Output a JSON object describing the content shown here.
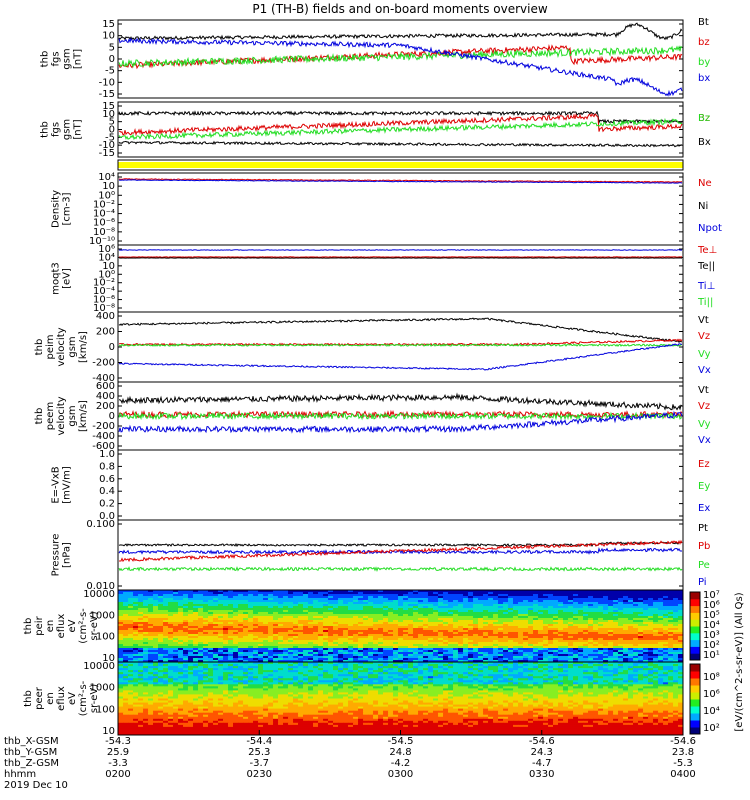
{
  "title": "P1 (TH-B) fields and on-board moments overview",
  "colors": {
    "black": "#000000",
    "red": "#dd0000",
    "green": "#22dd22",
    "blue": "#0000dd",
    "yellow": "#ffff00"
  },
  "chart_data": [
    {
      "type": "line",
      "ylabel": [
        "thb",
        "fgs",
        "gsm",
        "[nT]"
      ],
      "ylim": [
        -17,
        17
      ],
      "yticks": [
        "15",
        "10",
        "5",
        "0",
        "-5",
        "-10",
        "-15"
      ],
      "series": [
        {
          "name": "Bt",
          "color": "black"
        },
        {
          "name": "bz",
          "color": "red"
        },
        {
          "name": "by",
          "color": "green"
        },
        {
          "name": "bx",
          "color": "blue"
        }
      ]
    },
    {
      "type": "line",
      "ylabel": [
        "thb",
        "fgs",
        "gsm",
        "[nT]"
      ],
      "ylim": [
        -17,
        17
      ],
      "yticks": [
        "15",
        "10",
        "5",
        "0",
        "-5",
        "-10",
        "-15"
      ],
      "series": [
        {
          "name": "Bz",
          "color": "red"
        },
        {
          "name": "Bz",
          "color": "green"
        },
        {
          "name": "Bx",
          "color": "black"
        }
      ]
    },
    {
      "type": "bar",
      "ylabel": [],
      "yticks": [],
      "series": []
    },
    {
      "type": "line",
      "ylabel": [
        "Density",
        "[cm-3]"
      ],
      "log": true,
      "yticks": [
        "10⁴",
        "10⁲",
        "10⁰",
        "10⁻²",
        "10⁻⁴",
        "10⁻⁶",
        "10⁻⁸",
        "10⁻¹⁰"
      ],
      "series": [
        {
          "name": "Ne",
          "color": "red"
        },
        {
          "name": "Ni",
          "color": "black"
        },
        {
          "name": "Npot",
          "color": "blue"
        }
      ]
    },
    {
      "type": "line",
      "ylabel": [
        "moqt3",
        "[eV]"
      ],
      "log": true,
      "yticks": [
        "10⁶",
        "10⁴",
        "10⁲",
        "10⁰",
        "10⁻²",
        "10⁻⁴",
        "10⁻⁶",
        "10⁻⁸"
      ],
      "series": [
        {
          "name": "Te⊥",
          "color": "red"
        },
        {
          "name": "Te||",
          "color": "black"
        },
        {
          "name": "Ti⊥",
          "color": "blue"
        },
        {
          "name": "Ti||",
          "color": "green"
        }
      ]
    },
    {
      "type": "line",
      "ylabel": [
        "thb",
        "peim",
        "velocity",
        "gsm",
        "[km/s]"
      ],
      "ylim": [
        -500,
        450
      ],
      "yticks": [
        "400",
        "200",
        "0",
        "-200",
        "-400"
      ],
      "series": [
        {
          "name": "Vt",
          "color": "black"
        },
        {
          "name": "Vz",
          "color": "red"
        },
        {
          "name": "Vy",
          "color": "green"
        },
        {
          "name": "Vx",
          "color": "blue"
        }
      ]
    },
    {
      "type": "line",
      "ylabel": [
        "thb",
        "peem",
        "velocity",
        "gsm",
        "[km/s]"
      ],
      "ylim": [
        -650,
        650
      ],
      "yticks": [
        "600",
        "400",
        "200",
        "0",
        "-200",
        "-400",
        "-600"
      ],
      "series": [
        {
          "name": "Vt",
          "color": "black"
        },
        {
          "name": "Vz",
          "color": "red"
        },
        {
          "name": "Vy",
          "color": "green"
        },
        {
          "name": "Vx",
          "color": "blue"
        }
      ]
    },
    {
      "type": "line",
      "ylabel": [
        "E=-VxB",
        "[mV/m]"
      ],
      "ylim": [
        0,
        1.0
      ],
      "yticks": [
        "1.0",
        "0.8",
        "0.6",
        "0.4",
        "0.2",
        "0.0"
      ],
      "series": [
        {
          "name": "Ez",
          "color": "red"
        },
        {
          "name": "Ey",
          "color": "green"
        },
        {
          "name": "Ex",
          "color": "blue"
        }
      ]
    },
    {
      "type": "line",
      "ylabel": [
        "Pressure",
        "[nPa]"
      ],
      "log": true,
      "yticks": [
        "0.100",
        "0.010"
      ],
      "series": [
        {
          "name": "Pt",
          "color": "black"
        },
        {
          "name": "Pb",
          "color": "red"
        },
        {
          "name": "Pe",
          "color": "green"
        },
        {
          "name": "Pi",
          "color": "blue"
        }
      ]
    },
    {
      "type": "heatmap",
      "ylabel": [
        "thb",
        "peir",
        "en",
        "eflux",
        "eV",
        "(cm²-s-",
        "sr-eV)"
      ],
      "log": true,
      "yticks": [
        "10000",
        "1000",
        "100",
        "10"
      ]
    },
    {
      "type": "heatmap",
      "ylabel": [
        "thb",
        "peer",
        "en",
        "eflux",
        "eV",
        "(cm²-s-",
        "sr-eV)"
      ],
      "log": true,
      "yticks": [
        "10000",
        "1000",
        "100",
        "10"
      ]
    }
  ],
  "colorbar": {
    "label": "[eV/(cm^2-s-sr-eV)] (All Qs)",
    "top_ticks": [
      "10⁷",
      "10⁶",
      "10⁵",
      "10⁴",
      "10³",
      "10²",
      "10¹"
    ],
    "bottom_ticks": [
      "10⁸",
      "10⁶",
      "10⁴",
      "10²"
    ]
  },
  "xaxis": {
    "row_labels": [
      "thb_X-GSM",
      "thb_Y-GSM",
      "thb_Z-GSM",
      "hhmm",
      "2019 Dec 10"
    ],
    "ticks": [
      {
        "x": "-54.3",
        "y": "25.9",
        "z": "-3.3",
        "t": "0200"
      },
      {
        "x": "-54.4",
        "y": "25.3",
        "z": "-3.7",
        "t": "0230"
      },
      {
        "x": "-54.5",
        "y": "24.8",
        "z": "-4.2",
        "t": "0300"
      },
      {
        "x": "-54.6",
        "y": "24.3",
        "z": "-4.7",
        "t": "0330"
      },
      {
        "x": "-54.6",
        "y": "23.8",
        "z": "-5.3",
        "t": "0400"
      }
    ]
  }
}
